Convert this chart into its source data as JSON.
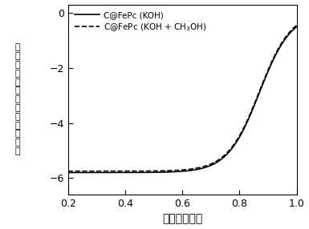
{
  "xlabel": "电势（伏特）",
  "ylabel_chars": [
    "电",
    "流",
    "密",
    "度",
    "（",
    "毫",
    "安",
    "／",
    "平",
    "方",
    "厘",
    "米",
    "）"
  ],
  "xlim": [
    0.2,
    1.0
  ],
  "ylim": [
    -6.6,
    0.3
  ],
  "xticks": [
    0.2,
    0.4,
    0.6,
    0.8,
    1.0
  ],
  "yticks": [
    0,
    -2,
    -4,
    -6
  ],
  "legend1": "C@FePc (KOH)",
  "legend2": "C@FePc (KOH + CH$_3$OH)",
  "line_color": "#000000",
  "bg_color": "#ffffff",
  "figsize": [
    3.85,
    2.86
  ],
  "dpi": 100
}
